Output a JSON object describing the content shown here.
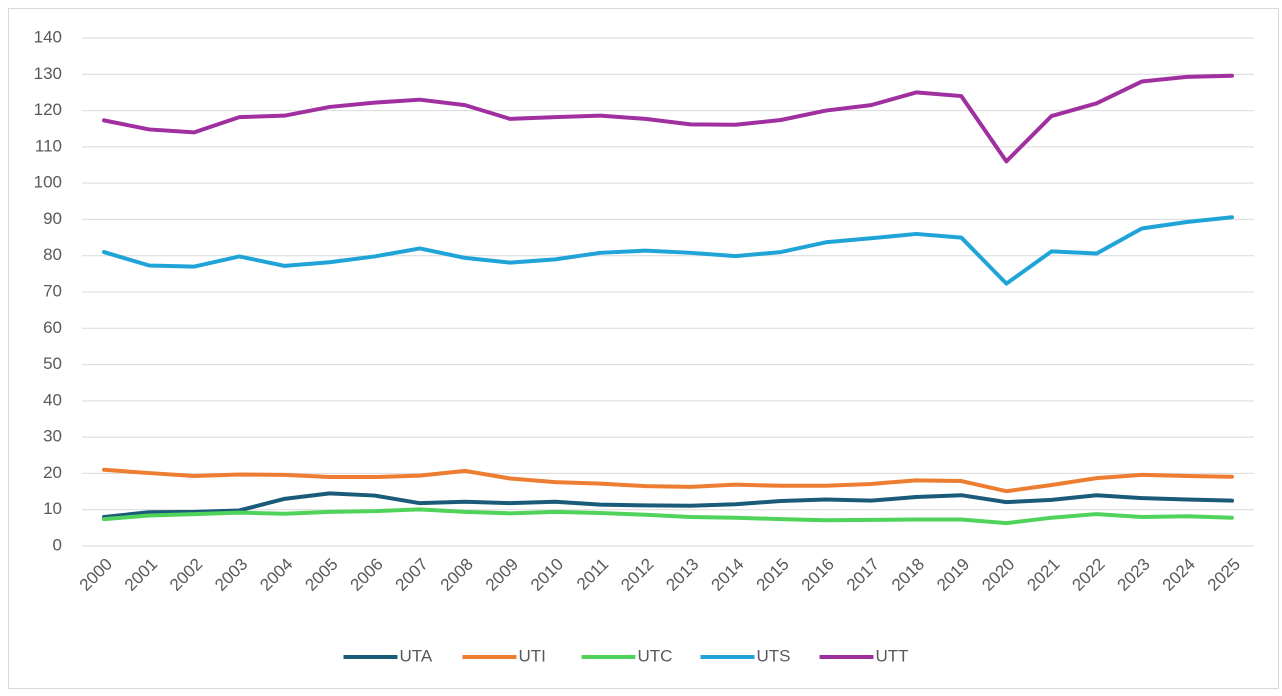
{
  "chart_data": {
    "type": "line",
    "categories": [
      "2000",
      "2001",
      "2002",
      "2003",
      "2004",
      "2005",
      "2006",
      "2007",
      "2008",
      "2009",
      "2010",
      "2011",
      "2012",
      "2013",
      "2014",
      "2015",
      "2016",
      "2017",
      "2018",
      "2019",
      "2020",
      "2021",
      "2022",
      "2023",
      "2024",
      "2025"
    ],
    "series": [
      {
        "name": "UTA",
        "color": "#1b5b7a",
        "values": [
          8,
          9.3,
          9.4,
          9.8,
          13,
          14.5,
          13.9,
          11.8,
          12.2,
          11.8,
          12.2,
          11.4,
          11.2,
          11.1,
          11.5,
          12.4,
          12.8,
          12.5,
          13.5,
          14,
          12.1,
          12.7,
          14,
          13.2,
          12.8,
          12.5
        ]
      },
      {
        "name": "UTI",
        "color": "#ed7d31",
        "values": [
          21,
          20.1,
          19.3,
          19.7,
          19.6,
          19,
          19,
          19.4,
          20.7,
          18.6,
          17.6,
          17.2,
          16.5,
          16.3,
          16.9,
          16.6,
          16.6,
          17.1,
          18.1,
          17.9,
          15.1,
          16.8,
          18.7,
          19.6,
          19.3,
          19.1
        ]
      },
      {
        "name": "UTC",
        "color": "#4fd35a",
        "values": [
          7.4,
          8.4,
          8.8,
          9.2,
          8.9,
          9.4,
          9.6,
          10.1,
          9.4,
          9,
          9.4,
          9.1,
          8.6,
          8,
          7.8,
          7.4,
          7.1,
          7.2,
          7.3,
          7.3,
          6.3,
          7.8,
          8.8,
          8,
          8.2,
          7.8
        ]
      },
      {
        "name": "UTS",
        "color": "#20a4d8",
        "values": [
          81,
          77.3,
          77,
          79.8,
          77.2,
          78.2,
          79.8,
          82,
          79.4,
          78.1,
          79,
          80.8,
          81.4,
          80.8,
          79.9,
          81,
          83.7,
          84.8,
          86,
          85,
          72.3,
          81.2,
          80.6,
          87.5,
          89.3,
          90.6
        ]
      },
      {
        "name": "UTT",
        "color": "#a0309f",
        "values": [
          117.3,
          114.8,
          114,
          118.2,
          118.6,
          121,
          122.2,
          123,
          121.5,
          117.7,
          118.2,
          118.6,
          117.7,
          116.2,
          116.1,
          117.4,
          120,
          121.5,
          125,
          124,
          106,
          118.5,
          122,
          128,
          129.3,
          129.6
        ]
      }
    ],
    "ylim": [
      0,
      140
    ],
    "yticks": [
      0,
      10,
      20,
      30,
      40,
      50,
      60,
      70,
      80,
      90,
      100,
      110,
      120,
      130,
      140
    ],
    "grid": true,
    "legend": "bottom"
  }
}
